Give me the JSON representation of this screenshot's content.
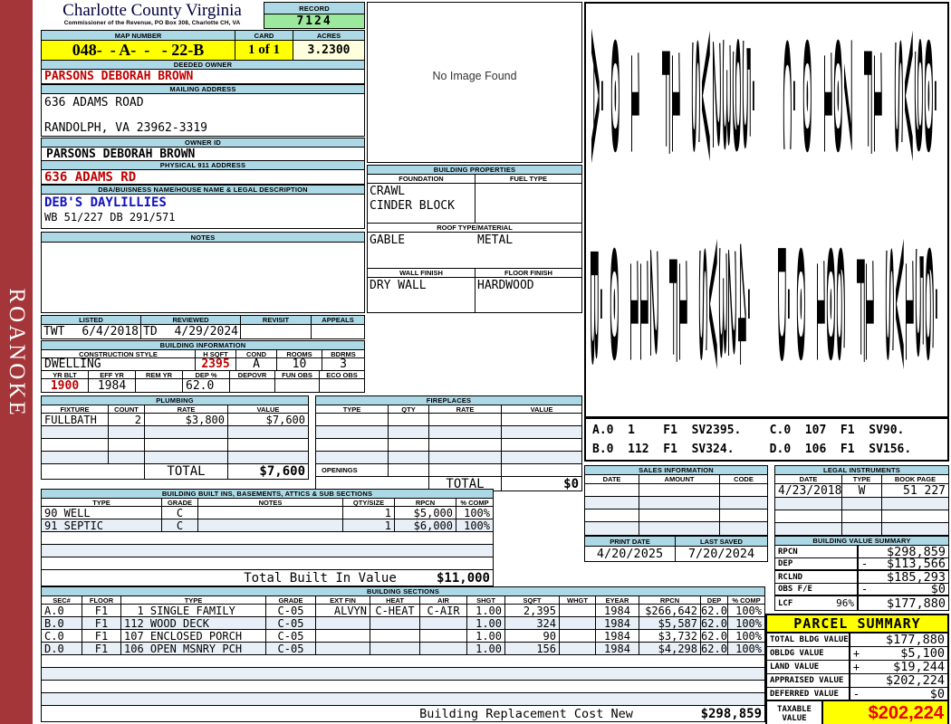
{
  "sidebar": {
    "label": "ROANOKE"
  },
  "header": {
    "county": "Charlotte County Virginia",
    "commissioner": "Commissioner of the Revenue, PO Box 308, Charlotte CH, VA",
    "record_label": "RECORD",
    "record": "7124",
    "map_label": "MAP NUMBER",
    "map": "048-  - A-  -   - 22-B",
    "card_label": "CARD",
    "card": "1 of 1",
    "acres_label": "ACRES",
    "acres": "3.2300"
  },
  "owner": {
    "deeded_label": "DEEDED OWNER",
    "deeded": "PARSONS DEBORAH BROWN",
    "mailing_label": "MAILING ADDRESS",
    "mailing1": "636 ADAMS ROAD",
    "mailing2": "RANDOLPH, VA 23962-3319",
    "owner_id_label": "OWNER ID",
    "owner_id": "PARSONS DEBORAH BROWN",
    "physical_label": "PHYSICAL 911 ADDRESS",
    "physical": "636 ADAMS RD",
    "dba_label": "DBA/BUISNESS NAME/HOUSE NAME & LEGAL DESCRIPTION",
    "dba": "DEB'S DAYLILLIES",
    "legal_desc": "WB 51/227 DB 291/571",
    "notes_label": "NOTES",
    "notes": ""
  },
  "photo": {
    "placeholder": "No Image Found"
  },
  "properties": {
    "title": "BUILDING PROPERTIES",
    "foundation_label": "FOUNDATION",
    "fuel_label": "FUEL TYPE",
    "foundation1": "CRAWL",
    "foundation2": "CINDER BLOCK",
    "fuel": "",
    "roof_label": "ROOF TYPE/MATERIAL",
    "roof_type": "GABLE",
    "roof_material": "METAL",
    "wall_label": "WALL FINISH",
    "floor_label": "FLOOR FINISH",
    "wall": "DRY WALL",
    "floor": "HARDWOOD"
  },
  "review": {
    "listed_label": "LISTED",
    "listed_by": "TWT",
    "listed_date": "6/4/2018",
    "reviewed_label": "REVIEWED",
    "reviewed_by": "TD",
    "reviewed_date": "4/29/2024",
    "revisit_label": "REVISIT",
    "revisit": "",
    "appeals_label": "APPEALS",
    "appeals": ""
  },
  "building_info": {
    "title": "BUILDING INFORMATION",
    "style_label": "CONSTRUCTION STYLE",
    "style": "DWELLING",
    "hsqft_label": "H SQFT",
    "hsqft": "2395",
    "cond_label": "COND",
    "cond": "A",
    "rooms_label": "ROOMS",
    "rooms": "10",
    "bdrms_label": "BDRMS",
    "bdrms": "3",
    "yrblt_label": "YR BLT",
    "yrblt": "1900",
    "effyr_label": "EFF YR",
    "effyr": "1984",
    "remyr_label": "REM YR",
    "remyr": "",
    "dep_label": "DEP %",
    "dep": "62.0",
    "depovr_label": "DEPOVR",
    "depovr": "",
    "funobs_label": "FUN OBS",
    "funobs": "",
    "ecoobs_label": "ECO OBS",
    "ecoobs": ""
  },
  "plumbing": {
    "title": "PLUMBING",
    "headers": {
      "fixture": "FIXTURE",
      "count": "COUNT",
      "rate": "RATE",
      "value": "VALUE"
    },
    "rows": [
      {
        "fixture": "FULLBATH",
        "count": "2",
        "rate": "$3,800",
        "value": "$7,600"
      }
    ],
    "total_label": "TOTAL",
    "total": "$7,600"
  },
  "fireplaces": {
    "title": "FIREPLACES",
    "headers": {
      "type": "TYPE",
      "qty": "QTY",
      "rate": "RATE",
      "value": "VALUE"
    },
    "openings_label": "OPENINGS",
    "total_label": "TOTAL",
    "total": "$0"
  },
  "built_ins": {
    "title": "BUILDING BUILT INS, BASEMENTS, ATTICS & SUB SECTIONS",
    "headers": {
      "type": "TYPE",
      "grade": "GRADE",
      "notes": "NOTES",
      "qty": "QTY/SIZE",
      "rpcn": "RPCN",
      "comp": "% COMP"
    },
    "rows": [
      {
        "type": "90 WELL",
        "grade": "C",
        "notes": "",
        "qty": "1",
        "rpcn": "$5,000",
        "comp": "100%"
      },
      {
        "type": "91 SEPTIC",
        "grade": "C",
        "notes": "",
        "qty": "1",
        "rpcn": "$6,000",
        "comp": "100%"
      }
    ],
    "total_label": "Total Built In Value",
    "total": "$11,000"
  },
  "sections": {
    "title": "BUILDING SECTIONS",
    "headers": {
      "sec": "SEC#",
      "floor": "FLOOR",
      "type": "TYPE",
      "grade": "GRADE",
      "ext": "EXT FIN",
      "heat": "HEAT",
      "air": "AIR",
      "shgt": "SHGT",
      "sqft": "SQFT",
      "whgt": "WHGT",
      "eyear": "EYEAR",
      "rpcn": "RPCN",
      "dep": "DEP",
      "comp": "% COMP"
    },
    "rows": [
      {
        "sec": "A.0",
        "floor": "F1",
        "type": "  1 SINGLE FAMILY",
        "grade": "C-05",
        "ext": "ALVYN",
        "heat": "C-HEAT",
        "air": "C-AIR",
        "shgt": "1.00",
        "sqft": "2,395",
        "whgt": "",
        "eyear": "1984",
        "rpcn": "$266,642",
        "dep": "62.0",
        "comp": "100%"
      },
      {
        "sec": "B.0",
        "floor": "F1",
        "type": "112 WOOD DECK",
        "grade": "C-05",
        "ext": "",
        "heat": "",
        "air": "",
        "shgt": "1.00",
        "sqft": "324",
        "whgt": "",
        "eyear": "1984",
        "rpcn": "$5,587",
        "dep": "62.0",
        "comp": "100%"
      },
      {
        "sec": "C.0",
        "floor": "F1",
        "type": "107 ENCLOSED PORCH",
        "grade": "C-05",
        "ext": "",
        "heat": "",
        "air": "",
        "shgt": "1.00",
        "sqft": "90",
        "whgt": "",
        "eyear": "1984",
        "rpcn": "$3,732",
        "dep": "62.0",
        "comp": "100%"
      },
      {
        "sec": "D.0",
        "floor": "F1",
        "type": "106 OPEN MSNRY PCH",
        "grade": "C-05",
        "ext": "",
        "heat": "",
        "air": "",
        "shgt": "1.00",
        "sqft": "156",
        "whgt": "",
        "eyear": "1984",
        "rpcn": "$4,298",
        "dep": "62.0",
        "comp": "100%"
      }
    ],
    "total_label": "Building Replacement Cost New",
    "total": "$298,859"
  },
  "sketch": {
    "line1": "A.0 1  F1 SV2395.  C.0 107 F1 SV90.",
    "line2": "B.0 112 F1 SV324.  D.0 106 F1 SV156.",
    "legend1": "A.0  1    F1  SV2395.    C.0  107  F1  SV90.",
    "legend2": "B.0  112  F1  SV324.     D.0  106  F1  SV156."
  },
  "sales": {
    "title": "SALES INFORMATION",
    "headers": {
      "date": "DATE",
      "amount": "AMOUNT",
      "code": "CODE"
    }
  },
  "legal": {
    "title": "LEGAL INSTRUMENTS",
    "headers": {
      "date": "DATE",
      "type": "TYPE",
      "book": "BOOK PAGE"
    },
    "rows": [
      {
        "date": "4/23/2018",
        "type": "W",
        "book": "51 227"
      }
    ]
  },
  "print_info": {
    "print_label": "PRINT DATE",
    "print_date": "4/20/2025",
    "saved_label": "LAST SAVED",
    "saved_date": "7/20/2024"
  },
  "value_summary": {
    "title": "BUILDING VALUE SUMMARY",
    "rows": [
      {
        "label": "RPCN",
        "op": "",
        "value": "$298,859"
      },
      {
        "label": "DEP",
        "op": "-",
        "value": "$113,566"
      },
      {
        "label": "RCLND",
        "op": "",
        "value": "$185,293"
      },
      {
        "label": "OBS F/E",
        "op": "-",
        "value": "$0"
      },
      {
        "label": "LCF",
        "pct": "96%",
        "op": "",
        "value": "$177,880"
      }
    ]
  },
  "parcel_summary": {
    "title": "PARCEL SUMMARY",
    "rows": [
      {
        "label": "TOTAL BLDG VALUE",
        "op": "",
        "value": "$177,880"
      },
      {
        "label": "OBLDG VALUE",
        "op": "+",
        "value": "$5,100"
      },
      {
        "label": "LAND VALUE",
        "op": "+",
        "value": "$19,244"
      },
      {
        "label": "APPRAISED VALUE",
        "op": "",
        "value": "$202,224"
      },
      {
        "label": "DEFERRED VALUE",
        "op": "-",
        "value": "$0"
      }
    ],
    "taxable_label1": "TAXABLE",
    "taxable_label2": "VALUE",
    "taxable": "$202,224"
  },
  "colors": {
    "header_blue": "#ADD8E6",
    "yellow": "#FFFF00",
    "record_green": "#9CE89C",
    "acres_cream": "#FFFFDE",
    "red_text": "#C00000",
    "blue_text": "#1010C0",
    "sidebar_red": "#A43639",
    "taxable_red": "#EE0000"
  }
}
